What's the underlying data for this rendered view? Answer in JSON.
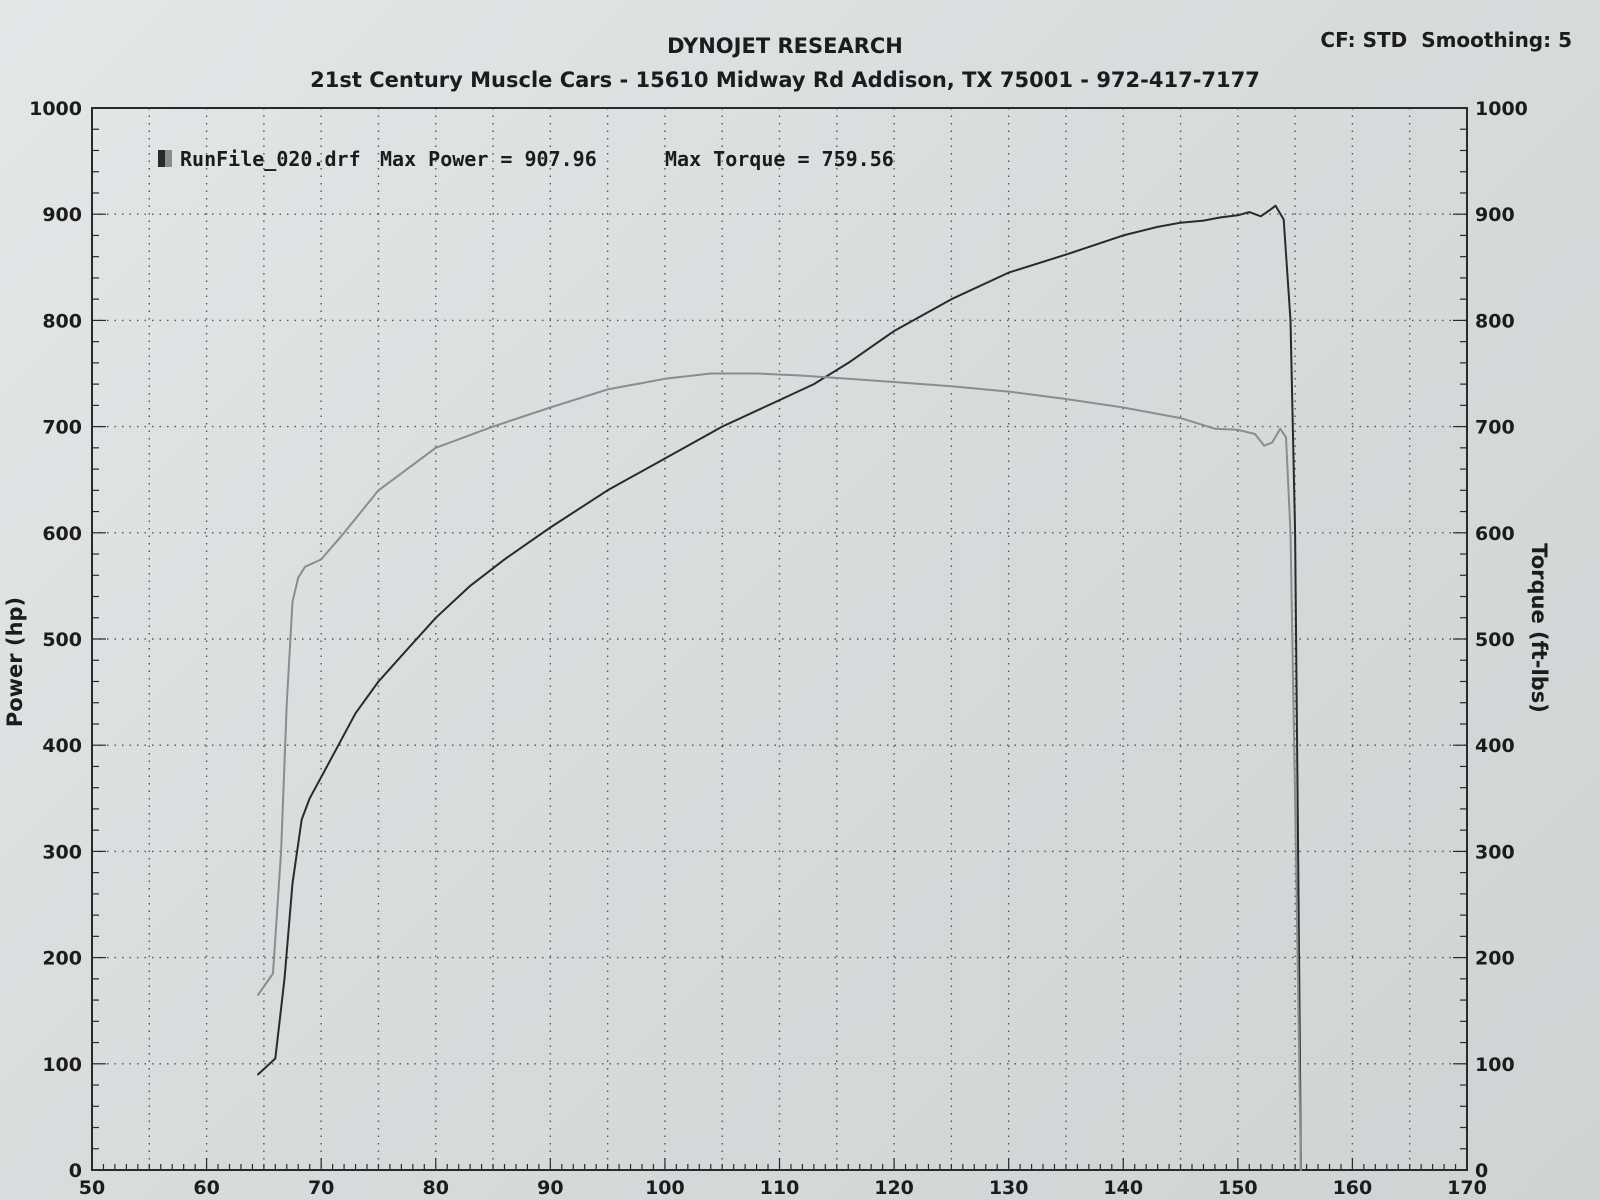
{
  "chart_data": {
    "type": "line",
    "title": "DYNOJET RESEARCH",
    "subtitle": "21st Century Muscle Cars - 15610 Midway Rd Addison, TX 75001 - 972-417-7177",
    "header_right": "CF: STD  Smoothing: 5",
    "ylabel": "Power (hp)",
    "y2label": "Torque (ft-lbs)",
    "xlim": [
      50,
      170
    ],
    "ylim": [
      0,
      1000
    ],
    "y2lim": [
      0,
      1000
    ],
    "x_ticks": [
      "50",
      "60",
      "70",
      "80",
      "90",
      "100",
      "110",
      "120",
      "130",
      "140",
      "150",
      "160",
      "170"
    ],
    "y_ticks": [
      "0",
      "100",
      "200",
      "300",
      "400",
      "500",
      "600",
      "700",
      "800",
      "900",
      "1000"
    ],
    "y2_ticks": [
      "0",
      "100",
      "200",
      "300",
      "400",
      "500",
      "600",
      "700",
      "800",
      "900",
      "1000"
    ],
    "grid": true,
    "legend": {
      "run_label": "RunFile_020.drf",
      "max_power": "Max Power = 907.96",
      "max_torque": "Max Torque = 759.56"
    },
    "series": [
      {
        "axis": "left",
        "color": "#2a2a2a",
        "x": [
          64.5,
          66.0,
          66.8,
          67.5,
          68.3,
          69.0,
          70.0,
          71.5,
          73.0,
          75.0,
          77.5,
          80.0,
          83.0,
          86.0,
          90.0,
          95.0,
          100.0,
          105.0,
          110.0,
          113.0,
          116.0,
          120.0,
          125.0,
          130.0,
          135.0,
          140.0,
          143.0,
          145.0,
          147.0,
          148.5,
          150.0,
          151.0,
          152.0,
          152.8,
          153.3,
          154.0,
          154.6,
          155.0,
          155.3,
          155.5
        ],
        "y": [
          90,
          105,
          180,
          270,
          330,
          350,
          370,
          400,
          430,
          460,
          490,
          520,
          550,
          575,
          605,
          640,
          670,
          700,
          725,
          740,
          760,
          790,
          820,
          845,
          862,
          880,
          888,
          892,
          894,
          897,
          899,
          902,
          898,
          904,
          908,
          895,
          800,
          600,
          250,
          0
        ]
      },
      {
        "axis": "left",
        "color": "#8a8d8e",
        "x": [
          64.5,
          65.8,
          66.5,
          67.0,
          67.5,
          68.0,
          68.6,
          70.0,
          72.0,
          75.0,
          80.0,
          85.0,
          90.0,
          95.0,
          100.0,
          104.0,
          108.0,
          112.0,
          116.0,
          120.0,
          125.0,
          130.0,
          135.0,
          140.0,
          145.0,
          148.0,
          150.0,
          151.5,
          152.3,
          153.0,
          153.7,
          154.2,
          154.6,
          155.0,
          155.5
        ],
        "y": [
          165,
          185,
          300,
          440,
          535,
          558,
          568,
          575,
          600,
          640,
          680,
          700,
          718,
          735,
          745,
          750,
          750,
          748,
          745,
          742,
          738,
          733,
          726,
          718,
          708,
          698,
          697,
          693,
          682,
          685,
          698,
          690,
          600,
          350,
          0
        ]
      }
    ]
  }
}
